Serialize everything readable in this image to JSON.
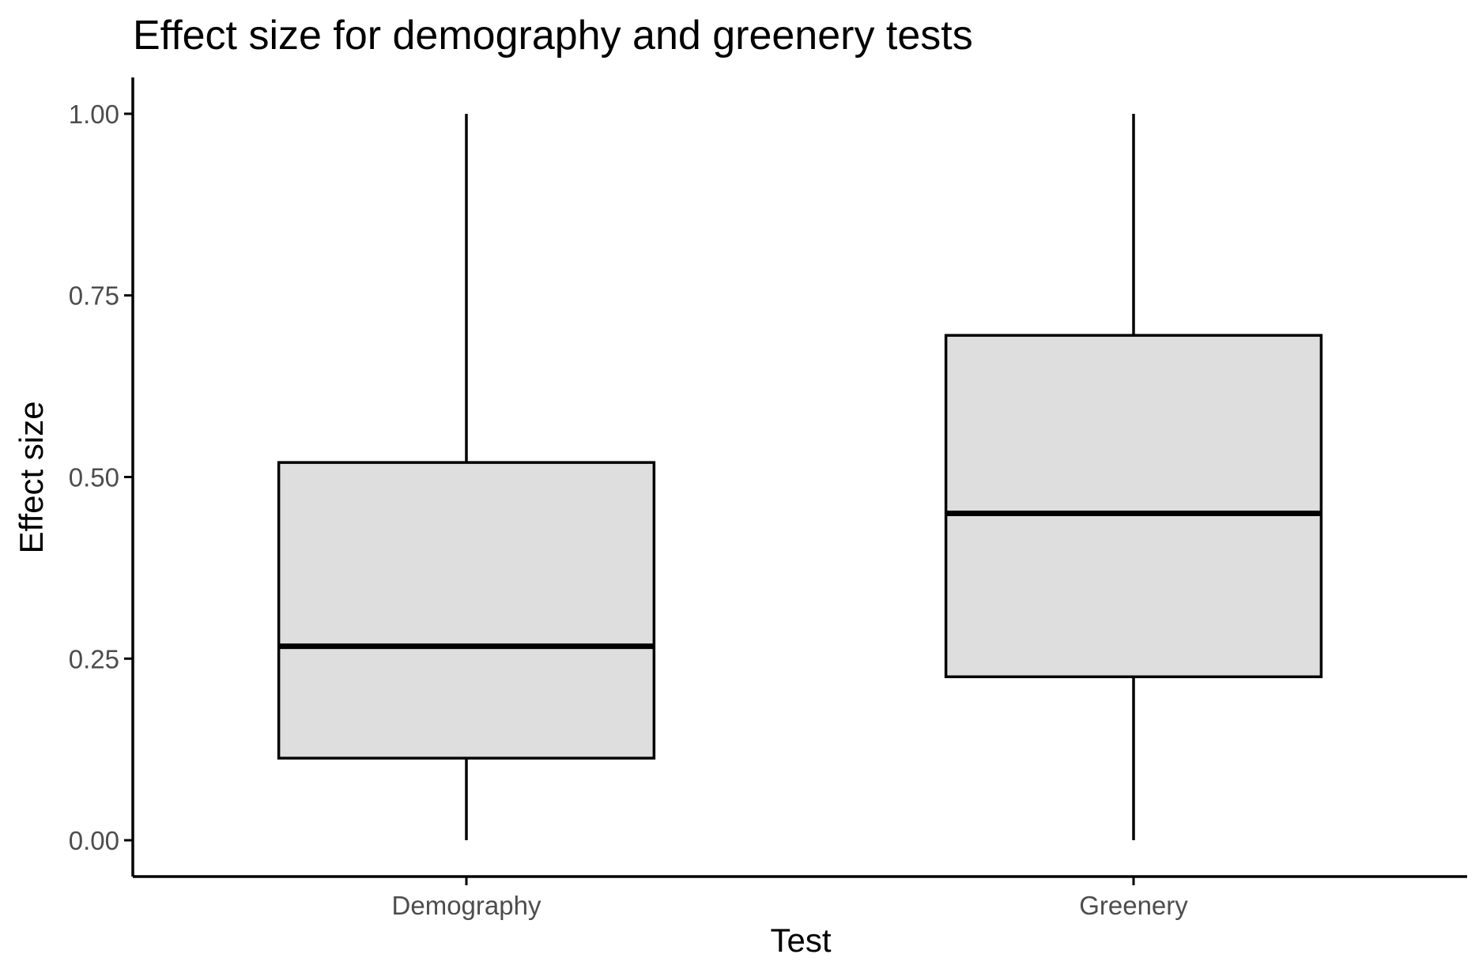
{
  "chart_data": {
    "type": "boxplot",
    "title": "Effect size for demography and greenery tests",
    "xlabel": "Test",
    "ylabel": "Effect size",
    "categories": [
      "Demography",
      "Greenery"
    ],
    "ylim": [
      -0.05,
      1.05
    ],
    "yticks": [
      0.0,
      0.25,
      0.5,
      0.75,
      1.0
    ],
    "ytick_labels": [
      "0.00",
      "0.25",
      "0.50",
      "0.75",
      "1.00"
    ],
    "boxes": [
      {
        "category": "Demography",
        "min": 0.0,
        "q1": 0.113,
        "median": 0.267,
        "q3": 0.52,
        "max": 1.0
      },
      {
        "category": "Greenery",
        "min": 0.0,
        "q1": 0.225,
        "median": 0.45,
        "q3": 0.695,
        "max": 1.0
      }
    ],
    "grid": false,
    "legend": "none",
    "colors": {
      "box_fill": "#dedede",
      "box_stroke": "#000000",
      "axis": "#000000",
      "tick_text": "#4d4d4d"
    }
  }
}
